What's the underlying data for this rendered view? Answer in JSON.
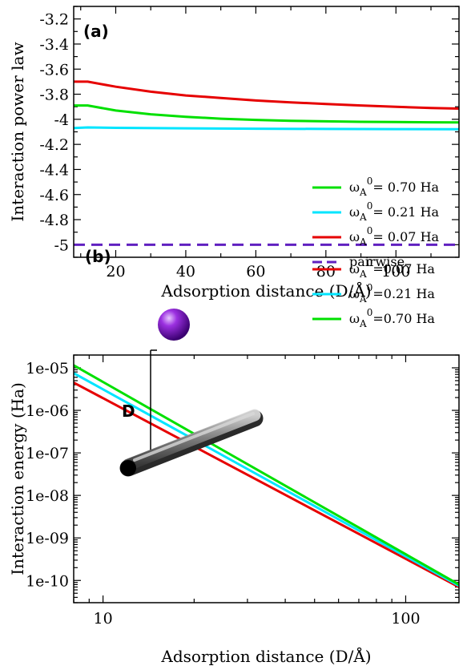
{
  "chart_data": [
    {
      "type": "line",
      "panel_label": "(a)",
      "xlabel": "Adsorption distance (D/Å)",
      "ylabel": "Interaction power law",
      "xlim": [
        8,
        118
      ],
      "ylim": [
        -5.1,
        -3.1
      ],
      "xticks": [
        20,
        40,
        60,
        80,
        100
      ],
      "yticks": [
        -5,
        -4.8,
        -4.6,
        -4.4,
        -4.2,
        -4,
        -3.8,
        -3.6,
        -3.4,
        -3.2
      ],
      "ytick_labels": [
        "-5",
        "-4.8",
        "-4.6",
        "-4.4",
        "-4.2",
        "-4",
        "-3.8",
        "-3.6",
        "-3.4",
        "-3.2"
      ],
      "legend_position": "lower-right",
      "series": [
        {
          "name": "ω",
          "sub": "A",
          "sup": "0",
          "suffix": "= 0.70 Ha",
          "color": "#00e000",
          "dash": false,
          "x": [
            8,
            12,
            20,
            30,
            40,
            50,
            60,
            70,
            80,
            90,
            100,
            110,
            118
          ],
          "y": [
            -3.89,
            -3.89,
            -3.93,
            -3.96,
            -3.98,
            -3.995,
            -4.005,
            -4.012,
            -4.016,
            -4.02,
            -4.022,
            -4.024,
            -4.025
          ]
        },
        {
          "name": "ω",
          "sub": "A",
          "sup": "0",
          "suffix": "= 0.21 Ha",
          "color": "#00e5ff",
          "dash": false,
          "x": [
            8,
            12,
            20,
            40,
            60,
            80,
            100,
            118
          ],
          "y": [
            -4.07,
            -4.065,
            -4.068,
            -4.072,
            -4.075,
            -4.077,
            -4.078,
            -4.079
          ]
        },
        {
          "name": "ω",
          "sub": "A",
          "sup": "0",
          "suffix": "= 0.07 Ha",
          "color": "#e60000",
          "dash": false,
          "x": [
            8,
            12,
            20,
            30,
            40,
            50,
            60,
            70,
            80,
            90,
            100,
            110,
            118
          ],
          "y": [
            -3.7,
            -3.7,
            -3.74,
            -3.78,
            -3.81,
            -3.83,
            -3.85,
            -3.865,
            -3.878,
            -3.89,
            -3.9,
            -3.91,
            -3.915
          ]
        },
        {
          "name": "pairwise",
          "sub": "",
          "sup": "",
          "suffix": "",
          "color": "#6020c0",
          "dash": true,
          "x": [
            8,
            118
          ],
          "y": [
            -5,
            -5
          ]
        }
      ]
    },
    {
      "type": "line",
      "panel_label": "(b)",
      "xlabel": "Adsorption distance (D/Å)",
      "ylabel": "Interaction energy (Ha)",
      "xscale": "log",
      "yscale": "log",
      "xlim": [
        8,
        150
      ],
      "ylim": [
        3e-11,
        2e-05
      ],
      "xticks": [
        10,
        100
      ],
      "xtick_labels": [
        "10",
        "100"
      ],
      "yticks": [
        1e-10,
        1e-09,
        1e-08,
        1e-07,
        1e-06,
        1e-05
      ],
      "ytick_labels": [
        "1e-10",
        "1e-09",
        "1e-08",
        "1e-07",
        "1e-06",
        "1e-05"
      ],
      "legend_position": "upper-right",
      "inset_label": "D",
      "series": [
        {
          "name": "ω",
          "sub": "A",
          "sup": "0",
          "suffix": "=0.07 Ha",
          "color": "#e60000",
          "x": [
            8,
            150
          ],
          "y": [
            4.5e-06,
            7e-11
          ]
        },
        {
          "name": "ω",
          "sub": "A",
          "sup": "0",
          "suffix": "=0.21 Ha",
          "color": "#00e5ff",
          "x": [
            8,
            150
          ],
          "y": [
            7.5e-06,
            7.5e-11
          ]
        },
        {
          "name": "ω",
          "sub": "A",
          "sup": "0",
          "suffix": "=0.70 Ha",
          "color": "#00e000",
          "x": [
            8,
            150
          ],
          "y": [
            1.15e-05,
            8e-11
          ]
        }
      ]
    }
  ]
}
